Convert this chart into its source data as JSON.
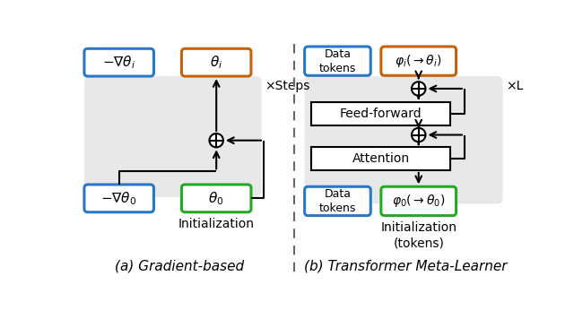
{
  "fig_width": 6.4,
  "fig_height": 3.56,
  "box_blue": "#2878c8",
  "box_orange": "#c8620a",
  "box_green": "#22aa22",
  "box_white": "#ffffff",
  "gray_bg": "#e8e8e8",
  "dashed_color": "#666666",
  "caption_a": "(a) Gradient-based",
  "caption_b": "(b) Transformer Meta-Learner",
  "label_steps": "×Steps",
  "label_L": "×L",
  "label_init_a": "Initialization",
  "label_init_b": "Initialization\n(tokens)"
}
